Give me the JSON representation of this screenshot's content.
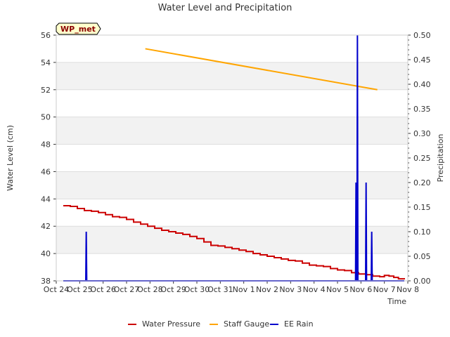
{
  "chart_data": {
    "type": "line",
    "title": "Water Level and Precipitation",
    "station_badge": "WP_met",
    "xlabel": "Time",
    "ylabel_left": "Water Level (cm)",
    "ylabel_right": "Precipitation",
    "x_ticks": [
      "Oct 24",
      "Oct 25",
      "Oct 26",
      "Oct 27",
      "Oct 28",
      "Oct 29",
      "Oct 30",
      "Oct 31",
      "Nov 1",
      "Nov 2",
      "Nov 3",
      "Nov 4",
      "Nov 5",
      "Nov 6",
      "Nov 7",
      "Nov 8"
    ],
    "xlim_days": [
      0,
      15
    ],
    "ylim_left": [
      38,
      56
    ],
    "y_ticks_left": [
      "38",
      "40",
      "42",
      "44",
      "46",
      "48",
      "50",
      "52",
      "54",
      "56"
    ],
    "ylim_right": [
      0,
      0.5
    ],
    "y_ticks_right": [
      "0.00",
      "0.05",
      "0.10",
      "0.15",
      "0.20",
      "0.25",
      "0.30",
      "0.35",
      "0.40",
      "0.45",
      "0.50"
    ],
    "grid": "horizontal bands",
    "legend_position": "bottom",
    "series": [
      {
        "name": "Water Pressure",
        "axis": "left",
        "color": "#cc0000",
        "points": [
          [
            0.3,
            43.5
          ],
          [
            0.6,
            43.45
          ],
          [
            0.9,
            43.3
          ],
          [
            1.2,
            43.15
          ],
          [
            1.5,
            43.1
          ],
          [
            1.8,
            43.0
          ],
          [
            2.1,
            42.85
          ],
          [
            2.4,
            42.7
          ],
          [
            2.7,
            42.65
          ],
          [
            3.0,
            42.5
          ],
          [
            3.3,
            42.3
          ],
          [
            3.6,
            42.15
          ],
          [
            3.9,
            42.0
          ],
          [
            4.2,
            41.85
          ],
          [
            4.5,
            41.7
          ],
          [
            4.8,
            41.6
          ],
          [
            5.1,
            41.5
          ],
          [
            5.4,
            41.4
          ],
          [
            5.7,
            41.25
          ],
          [
            6.0,
            41.1
          ],
          [
            6.3,
            40.85
          ],
          [
            6.6,
            40.6
          ],
          [
            6.9,
            40.55
          ],
          [
            7.2,
            40.45
          ],
          [
            7.5,
            40.35
          ],
          [
            7.8,
            40.25
          ],
          [
            8.1,
            40.15
          ],
          [
            8.4,
            40.0
          ],
          [
            8.7,
            39.9
          ],
          [
            9.0,
            39.8
          ],
          [
            9.3,
            39.7
          ],
          [
            9.6,
            39.6
          ],
          [
            9.9,
            39.5
          ],
          [
            10.2,
            39.45
          ],
          [
            10.5,
            39.3
          ],
          [
            10.8,
            39.15
          ],
          [
            11.1,
            39.1
          ],
          [
            11.4,
            39.05
          ],
          [
            11.7,
            38.9
          ],
          [
            12.0,
            38.8
          ],
          [
            12.3,
            38.75
          ],
          [
            12.6,
            38.6
          ],
          [
            12.9,
            38.5
          ],
          [
            13.2,
            38.45
          ],
          [
            13.5,
            38.35
          ],
          [
            13.8,
            38.3
          ],
          [
            14.0,
            38.4
          ],
          [
            14.2,
            38.35
          ],
          [
            14.4,
            38.25
          ],
          [
            14.6,
            38.15
          ],
          [
            14.85,
            38.1
          ]
        ]
      },
      {
        "name": "Staff Gauge",
        "axis": "left",
        "color": "#ffa500",
        "points": [
          [
            3.8,
            55.0
          ],
          [
            13.7,
            52.0
          ]
        ]
      },
      {
        "name": "EE Rain",
        "axis": "right",
        "color": "#0000cc",
        "points": [
          [
            0.3,
            0.0
          ],
          [
            1.26,
            0.0
          ],
          [
            1.28,
            0.1
          ],
          [
            1.3,
            0.0
          ],
          [
            12.77,
            0.0
          ],
          [
            12.79,
            0.2
          ],
          [
            12.81,
            0.0
          ],
          [
            12.83,
            0.0
          ],
          [
            12.85,
            0.5
          ],
          [
            12.87,
            0.0
          ],
          [
            13.2,
            0.0
          ],
          [
            13.22,
            0.2
          ],
          [
            13.24,
            0.0
          ],
          [
            13.44,
            0.0
          ],
          [
            13.46,
            0.1
          ],
          [
            13.48,
            0.0
          ],
          [
            14.85,
            0.0
          ]
        ]
      }
    ]
  },
  "legend": {
    "items": [
      {
        "label": "Water Pressure",
        "color": "#cc0000"
      },
      {
        "label": "Staff Gauge",
        "color": "#ffa500"
      },
      {
        "label": "EE Rain",
        "color": "#0000cc"
      }
    ]
  }
}
